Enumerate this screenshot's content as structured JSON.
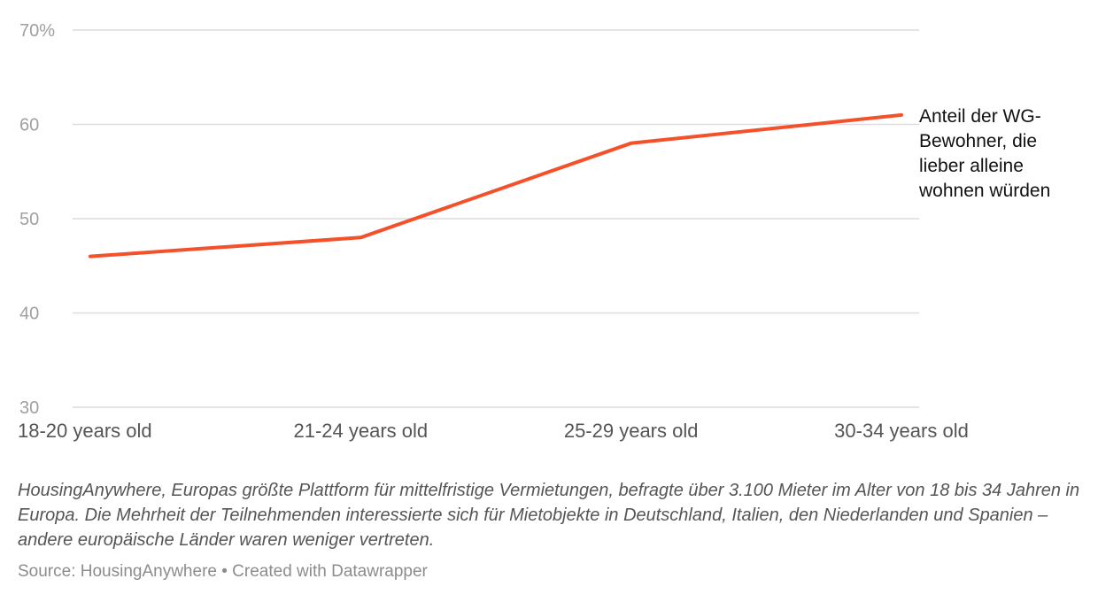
{
  "chart_data": {
    "type": "line",
    "categories": [
      "18-20 years old",
      "21-24 years old",
      "25-29 years old",
      "30-34 years old"
    ],
    "series": [
      {
        "name": "Anteil der WG-Bewohner, die lieber alleine wohnen würden",
        "label_lines": [
          "Anteil der WG-",
          "Bewohner, die",
          "lieber alleine",
          "wohnen würden"
        ],
        "values": [
          46,
          48,
          58,
          61
        ],
        "color": "#f4502a"
      }
    ],
    "ylim": [
      30,
      70
    ],
    "yticks": [
      30,
      40,
      50,
      60,
      70
    ],
    "ytick_labels": [
      "30",
      "40",
      "50",
      "60",
      "70%"
    ],
    "grid": true,
    "legend_placement": "right, at line end",
    "title": "",
    "xlabel": "",
    "ylabel": ""
  },
  "notes": "HousingAnywhere, Europas größte Plattform für mittelfristige Vermietungen, befragte über 3.100 Mieter im Alter von 18 bis 34 Jahren in Europa. Die Mehrheit der Teilnehmenden interessierte sich für Mietobjekte in Deutschland, Italien, den Niederlanden und Spanien – andere europäische Länder waren weniger vertreten.",
  "source": "Source: HousingAnywhere • Created with Datawrapper"
}
